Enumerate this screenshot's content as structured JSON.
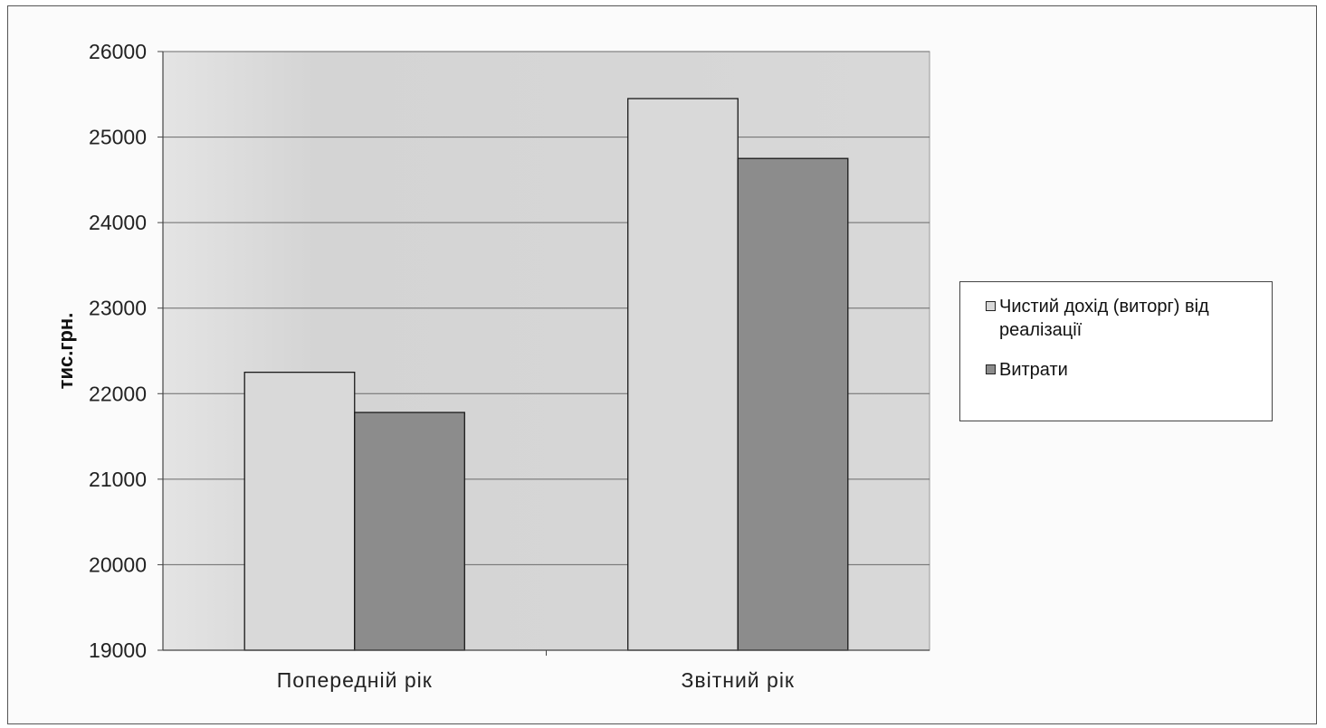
{
  "chart_data": {
    "type": "bar",
    "title": "",
    "xlabel": "",
    "ylabel": "тис.грн.",
    "categories": [
      "Попередній  рік",
      "Звітний  рік"
    ],
    "series": [
      {
        "name": "Чистий дохід (виторг) від реалізації",
        "values": [
          22250,
          25450
        ],
        "color": "#d9d9d9"
      },
      {
        "name": "Витрати",
        "values": [
          21780,
          24750
        ],
        "color": "#8c8c8c"
      }
    ],
    "ylim": [
      19000,
      26000
    ],
    "yticks": [
      "19000",
      "20000",
      "21000",
      "22000",
      "23000",
      "24000",
      "25000",
      "26000"
    ],
    "grid": true,
    "legend_position": "right",
    "plot_background": "#d6d6d6"
  }
}
